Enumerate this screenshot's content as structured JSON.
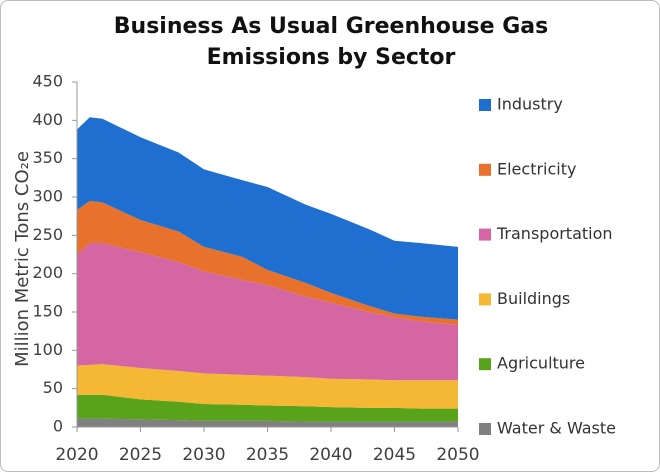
{
  "chart_data": {
    "type": "stacked_area",
    "title": "Business As Usual Greenhouse Gas Emissions by Sector",
    "y_label": "Million Metric Tons CO₂e",
    "x": [
      2020,
      2021,
      2022,
      2025,
      2028,
      2030,
      2033,
      2035,
      2038,
      2040,
      2043,
      2045,
      2047,
      2050
    ],
    "xlim": [
      2020,
      2050
    ],
    "xticks": [
      2020,
      2025,
      2030,
      2035,
      2040,
      2045,
      2050
    ],
    "ylim": [
      0,
      450
    ],
    "yticks": [
      0,
      50,
      100,
      150,
      200,
      250,
      300,
      350,
      400,
      450
    ],
    "legend": "right",
    "series": [
      {
        "name": "Water & Waste",
        "color": "#808080",
        "values": [
          11,
          11,
          11,
          10,
          9,
          8,
          8,
          8,
          7,
          7,
          7,
          7,
          7,
          7
        ]
      },
      {
        "name": "Agriculture",
        "color": "#59a31b",
        "values": [
          31,
          31,
          31,
          26,
          24,
          22,
          21,
          20,
          20,
          19,
          18,
          18,
          17,
          17
        ]
      },
      {
        "name": "Buildings",
        "color": "#f4b834",
        "values": [
          38,
          39,
          40,
          41,
          40,
          40,
          39,
          39,
          38,
          37,
          37,
          36,
          37,
          37
        ]
      },
      {
        "name": "Transportation",
        "color": "#d466a3",
        "values": [
          145,
          159,
          158,
          151,
          142,
          133,
          124,
          118,
          105,
          99,
          88,
          82,
          77,
          72
        ]
      },
      {
        "name": "Electricity",
        "color": "#e8712b",
        "values": [
          58,
          55,
          53,
          42,
          40,
          32,
          30,
          20,
          18,
          13,
          8,
          5,
          6,
          7
        ]
      },
      {
        "name": "Industry",
        "color": "#1e6fcf",
        "values": [
          105,
          109,
          109,
          108,
          103,
          101,
          100,
          108,
          102,
          103,
          100,
          95,
          96,
          95
        ]
      }
    ]
  }
}
